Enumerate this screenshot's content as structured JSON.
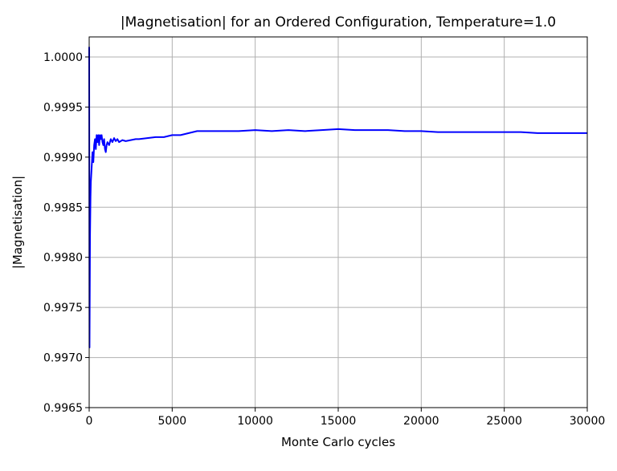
{
  "chart_data": {
    "type": "line",
    "title": "|Magnetisation| for an Ordered Configuration, Temperature=1.0",
    "xlabel": "Monte Carlo cycles",
    "ylabel": "|Magnetisation|",
    "xlim": [
      0,
      30000
    ],
    "ylim": [
      0.9965,
      1.0002
    ],
    "x_ticks": [
      0,
      5000,
      10000,
      15000,
      20000,
      25000,
      30000
    ],
    "x_tick_labels": [
      "0",
      "5000",
      "10000",
      "15000",
      "20000",
      "25000",
      "30000"
    ],
    "y_ticks": [
      0.9965,
      0.997,
      0.9975,
      0.998,
      0.9985,
      0.999,
      0.9995,
      1.0
    ],
    "y_tick_labels": [
      "0.9965",
      "0.9970",
      "0.9975",
      "0.9980",
      "0.9985",
      "0.9990",
      "0.9995",
      "1.0000"
    ],
    "grid": true,
    "legend": "none",
    "series": [
      {
        "color": "#0000ff",
        "x": [
          0,
          20,
          50,
          80,
          100,
          150,
          200,
          250,
          300,
          350,
          400,
          450,
          500,
          550,
          600,
          650,
          700,
          750,
          800,
          850,
          900,
          950,
          1000,
          1050,
          1100,
          1200,
          1300,
          1400,
          1500,
          1600,
          1700,
          1800,
          2000,
          2200,
          2500,
          2800,
          3000,
          3500,
          4000,
          4500,
          5000,
          5500,
          6000,
          6500,
          7000,
          8000,
          9000,
          10000,
          11000,
          12000,
          13000,
          14000,
          15000,
          16000,
          17000,
          18000,
          19000,
          20000,
          21000,
          22000,
          23000,
          24000,
          25000,
          26000,
          27000,
          28000,
          29000,
          30000
        ],
        "y": [
          1.0001,
          0.9971,
          0.9982,
          0.9986,
          0.99875,
          0.9989,
          0.99905,
          0.99895,
          0.99912,
          0.99918,
          0.99908,
          0.99922,
          0.99915,
          0.99922,
          0.99912,
          0.99922,
          0.99918,
          0.99922,
          0.99915,
          0.99912,
          0.99918,
          0.99908,
          0.99905,
          0.99912,
          0.99915,
          0.99912,
          0.99918,
          0.99915,
          0.99919,
          0.99916,
          0.99918,
          0.99915,
          0.99917,
          0.99916,
          0.99917,
          0.99918,
          0.99918,
          0.99919,
          0.9992,
          0.9992,
          0.99922,
          0.99922,
          0.99924,
          0.99926,
          0.99926,
          0.99926,
          0.99926,
          0.99927,
          0.99926,
          0.99927,
          0.99926,
          0.99927,
          0.99928,
          0.99927,
          0.99927,
          0.99927,
          0.99926,
          0.99926,
          0.99925,
          0.99925,
          0.99925,
          0.99925,
          0.99925,
          0.99925,
          0.99924,
          0.99924,
          0.99924,
          0.99924
        ]
      }
    ]
  }
}
